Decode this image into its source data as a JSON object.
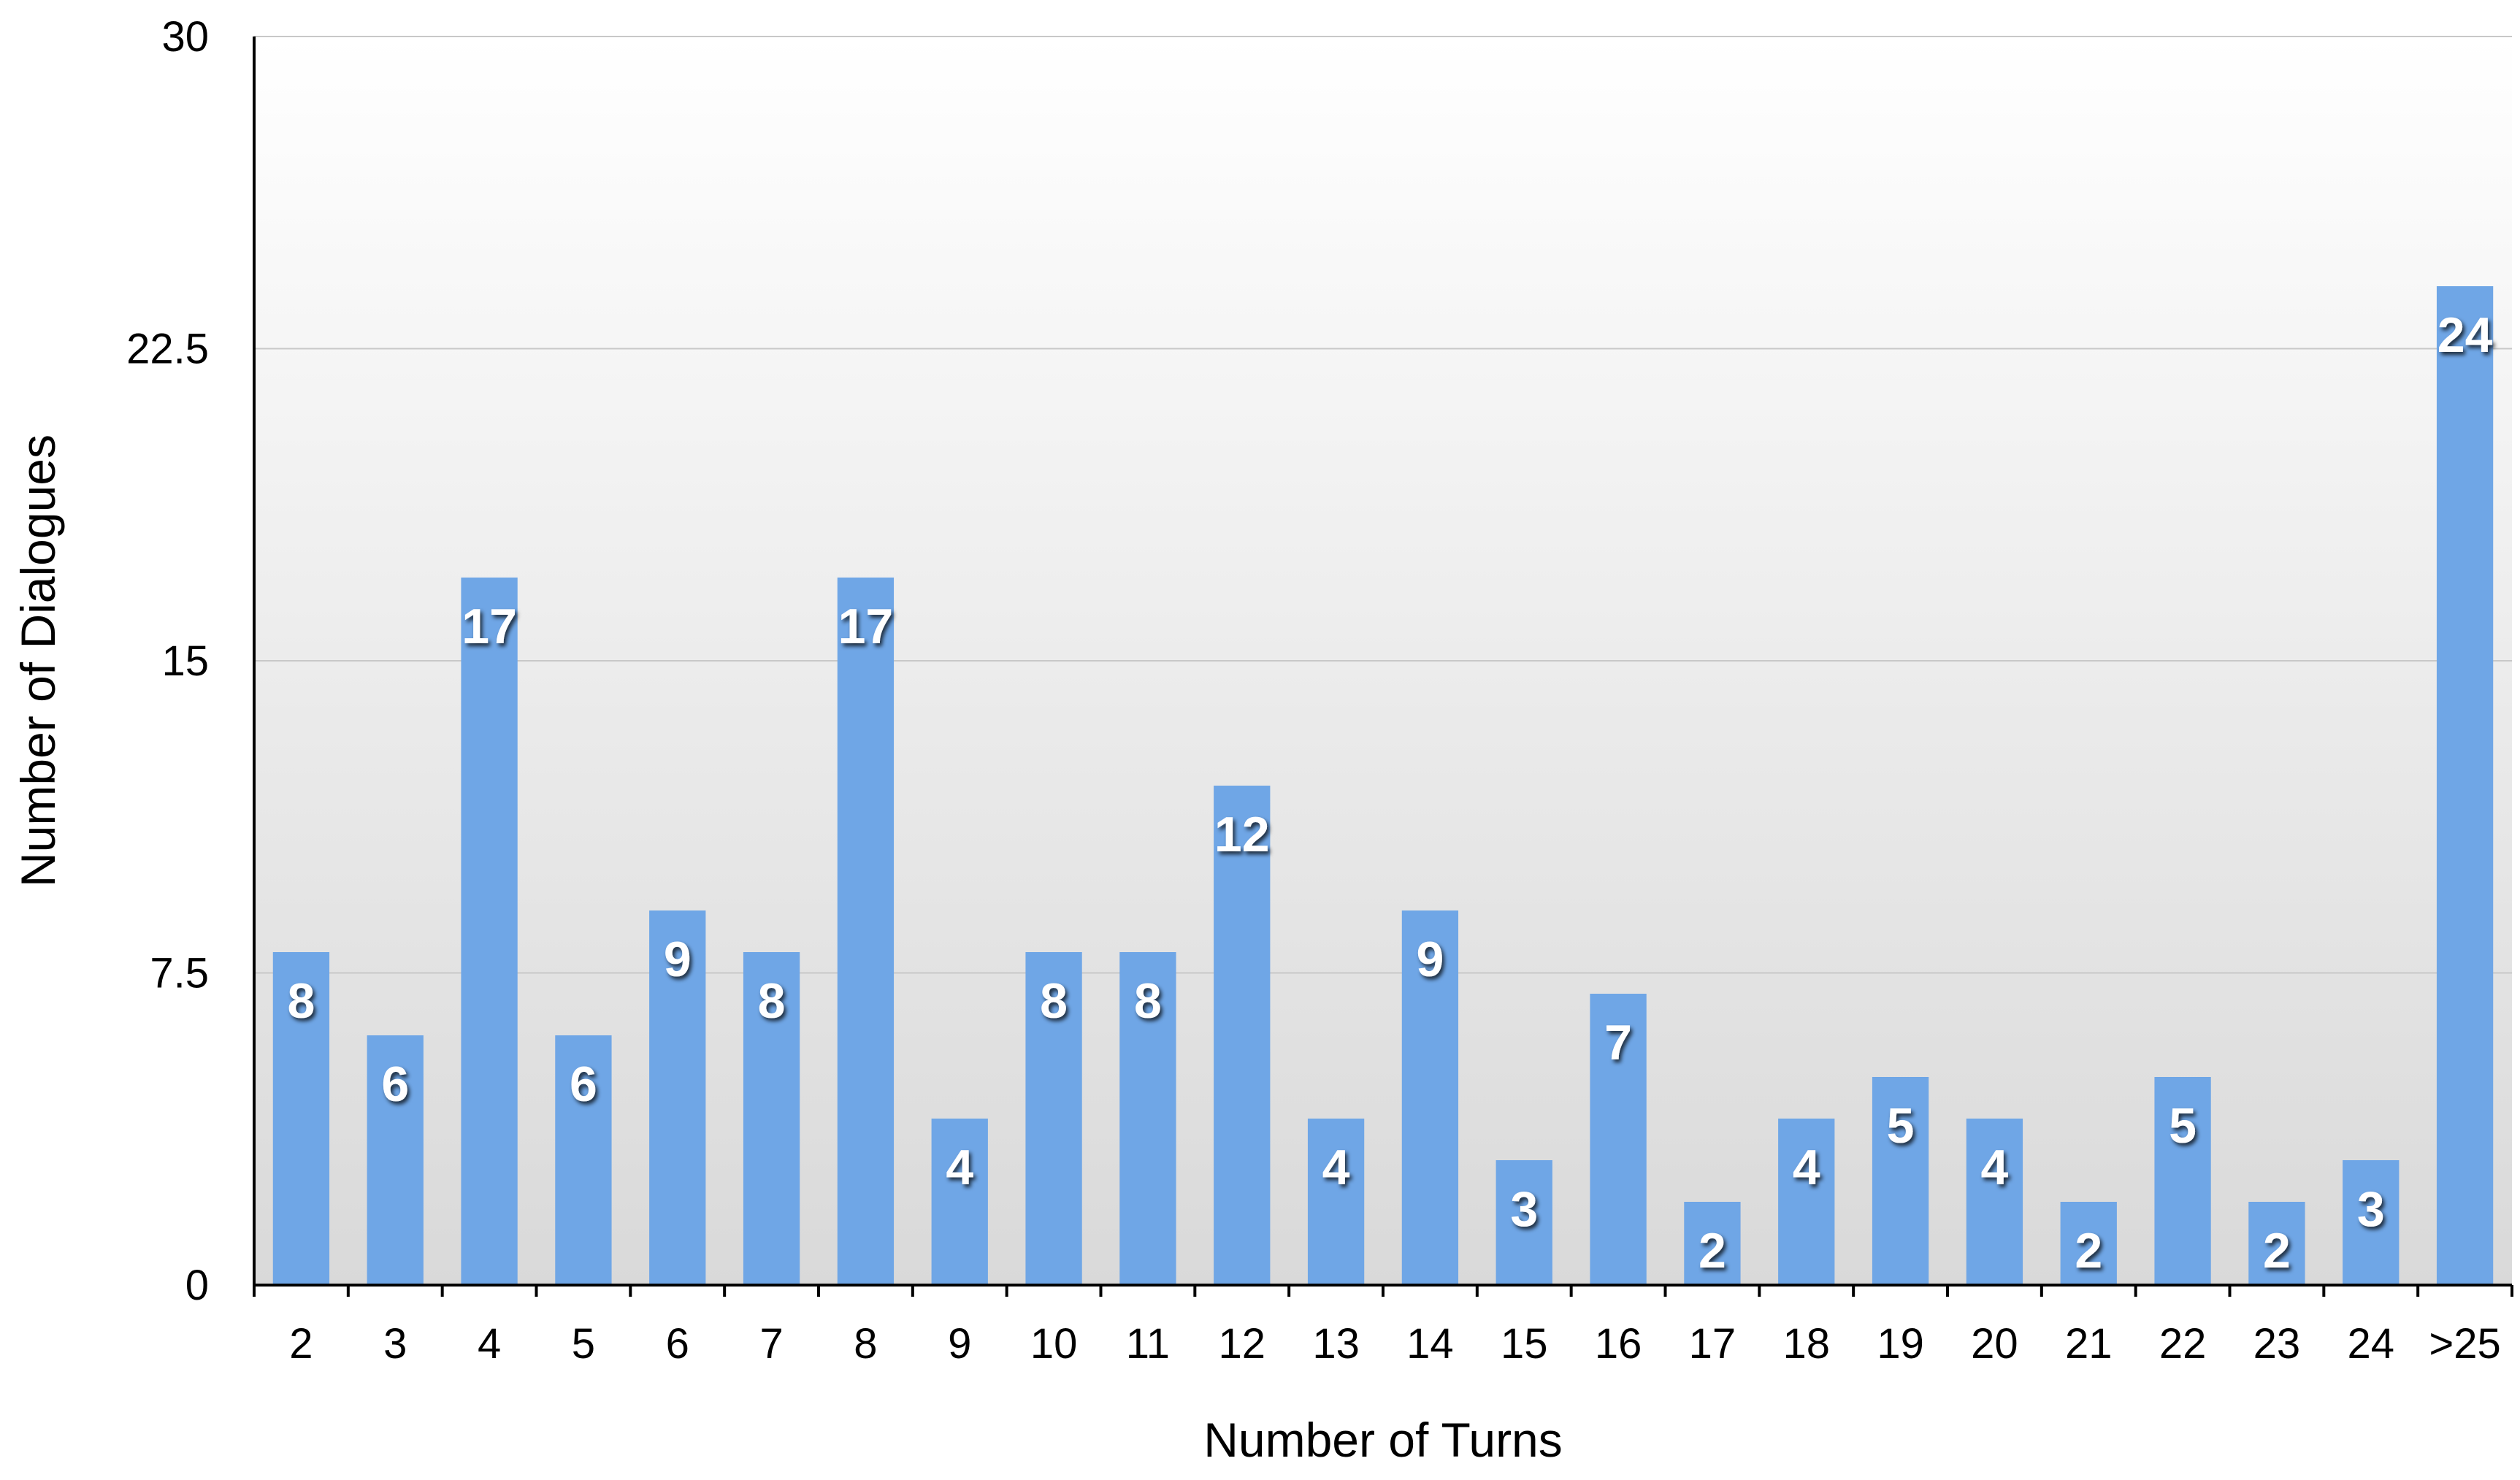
{
  "chart_data": {
    "type": "bar",
    "title": "",
    "xlabel": "Number of Turns",
    "ylabel": "Number of Dialogues",
    "categories": [
      "2",
      "3",
      "4",
      "5",
      "6",
      "7",
      "8",
      "9",
      "10",
      "11",
      "12",
      "13",
      "14",
      "15",
      "16",
      "17",
      "18",
      "19",
      "20",
      "21",
      "22",
      "23",
      "24",
      ">25"
    ],
    "values": [
      8,
      6,
      17,
      6,
      9,
      8,
      17,
      4,
      8,
      8,
      12,
      4,
      9,
      3,
      7,
      2,
      4,
      5,
      4,
      2,
      5,
      2,
      3,
      24
    ],
    "data_labels": [
      "8",
      "6",
      "17",
      "6",
      "9",
      "8",
      "17",
      "4",
      "8",
      "8",
      "12",
      "4",
      "9",
      "3",
      "7",
      "2",
      "4",
      "5",
      "4",
      "2",
      "5",
      "2",
      "3",
      "24"
    ],
    "ylim": [
      0,
      30
    ],
    "yticks": [
      0,
      7.5,
      15,
      22.5,
      30
    ],
    "ytick_labels": [
      "0",
      "7.5",
      "15",
      "22.5",
      "30"
    ],
    "grid": true,
    "legend": "none",
    "colors": {
      "bar": "#6fa6e6",
      "gridline": "#c8c8c8",
      "background_top": "#ffffff",
      "background_bottom": "#d9d9d9",
      "axis": "#000000",
      "data_label": "#ffffff"
    }
  }
}
